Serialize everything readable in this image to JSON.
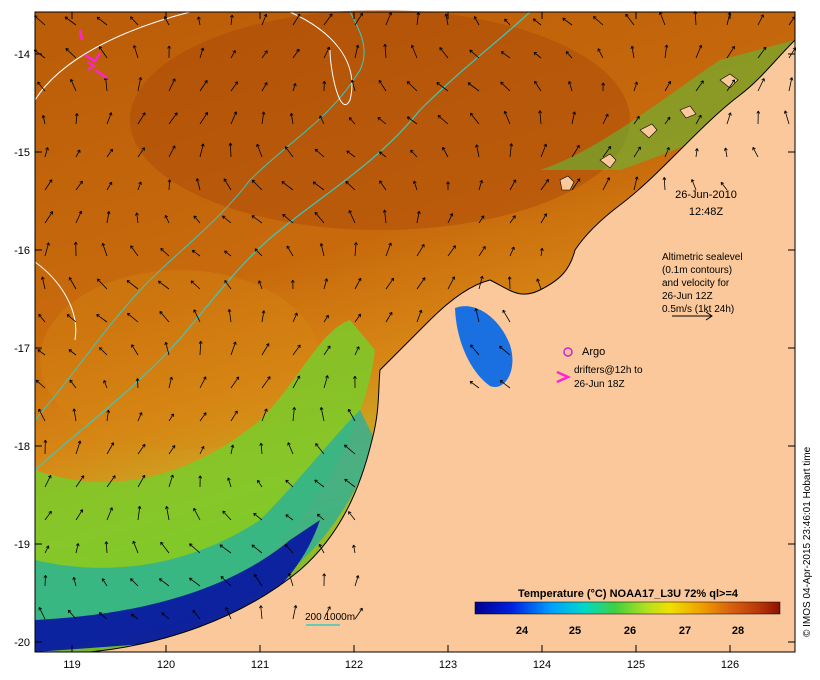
{
  "map": {
    "lon_ticks": [
      "119",
      "120",
      "121",
      "122",
      "123",
      "124",
      "125",
      "126"
    ],
    "lat_ticks": [
      "-14",
      "-15",
      "-16",
      "-17",
      "-18",
      "-19",
      "-20"
    ]
  },
  "annotations": {
    "date": "26-Jun-2010",
    "time": "12:48Z",
    "altimetry_lines": [
      "Altimetric sealevel",
      "(0.1m contours)",
      "and velocity for",
      "26-Jun 12Z",
      "0.5m/s (1kt 24h)"
    ],
    "argo_label": "Argo",
    "drifters_lines": [
      "drifters@12h to",
      "26-Jun 18Z"
    ],
    "bathy_label": "200  1000m"
  },
  "colorbar": {
    "title": "Temperature (°C) NOAA17_L3U 72% ql>=4",
    "ticks": [
      "24",
      "25",
      "26",
      "27",
      "28"
    ]
  },
  "credit": "© IMOS 04-Apr-2015 23:46:01 Hobart time",
  "colors": {
    "land": "#fac89a",
    "contour_bathy": "#3ac9c0",
    "contour_sealevel": "#ffffff",
    "argo": "#d61fd6",
    "drifter": "#ff22d6"
  }
}
